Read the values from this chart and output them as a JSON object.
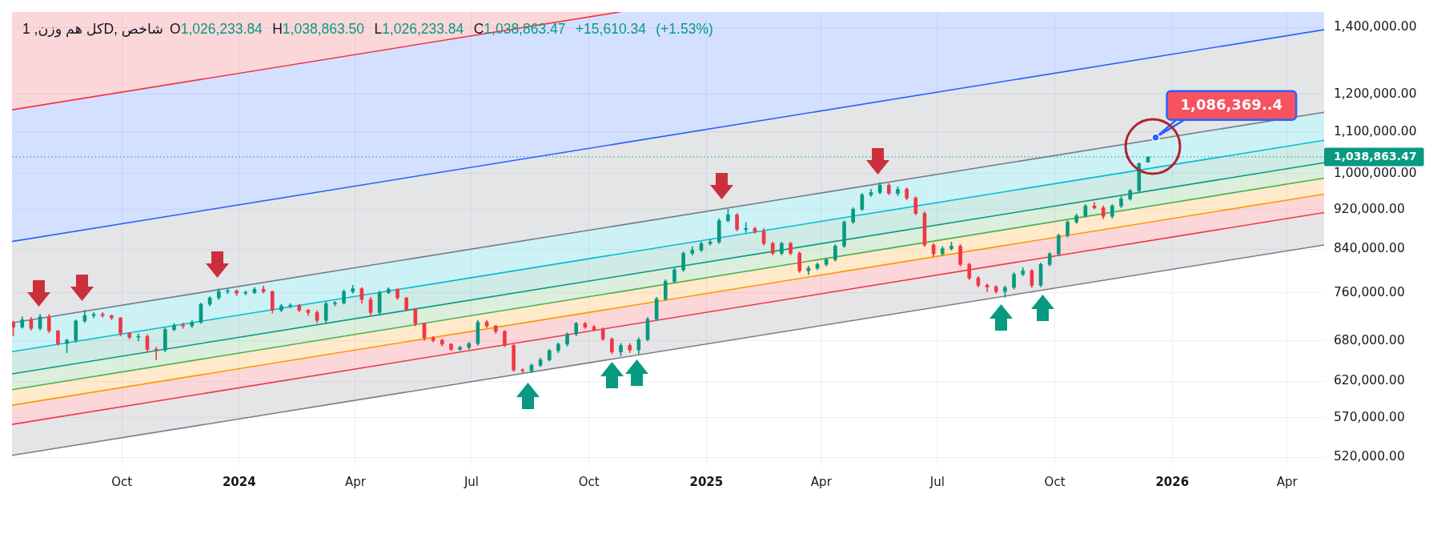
{
  "chart_data": {
    "type": "candlestick",
    "title": "کل هم وزن, 1D, شاخص",
    "subtitle": "O1,026,233.84 H1,038,863.50 L1,026,233.84 C1,038,863.47 +15,610.34 (+1.53%)",
    "x": [
      "2023-07-08",
      "2023-07-15",
      "2023-07-22",
      "2023-07-29",
      "2023-08-05",
      "2023-08-12",
      "2023-08-19",
      "2023-08-26",
      "2023-09-02",
      "2023-09-09",
      "2023-09-16",
      "2023-09-23",
      "2023-09-30",
      "2023-10-07",
      "2023-10-14",
      "2023-10-21",
      "2023-10-28",
      "2023-11-04",
      "2023-11-11",
      "2023-11-18",
      "2023-11-25",
      "2023-12-02",
      "2023-12-09",
      "2023-12-16",
      "2023-12-23",
      "2023-12-30",
      "2024-01-06",
      "2024-01-13",
      "2024-01-20",
      "2024-01-27",
      "2024-02-03",
      "2024-02-10",
      "2024-02-17",
      "2024-02-24",
      "2024-03-02",
      "2024-03-09",
      "2024-03-16",
      "2024-03-23",
      "2024-03-30",
      "2024-04-06",
      "2024-04-13",
      "2024-04-20",
      "2024-04-27",
      "2024-05-04",
      "2024-05-11",
      "2024-05-18",
      "2024-05-25",
      "2024-06-01",
      "2024-06-08",
      "2024-06-15",
      "2024-06-22",
      "2024-06-29",
      "2024-07-06",
      "2024-07-13",
      "2024-07-20",
      "2024-07-27",
      "2024-08-03",
      "2024-08-10",
      "2024-08-17",
      "2024-08-24",
      "2024-08-31",
      "2024-09-07",
      "2024-09-14",
      "2024-09-21",
      "2024-09-28",
      "2024-10-05",
      "2024-10-12",
      "2024-10-19",
      "2024-10-26",
      "2024-11-02",
      "2024-11-09",
      "2024-11-16",
      "2024-11-23",
      "2024-11-30",
      "2024-12-07",
      "2024-12-14",
      "2024-12-21",
      "2024-12-28",
      "2025-01-04",
      "2025-01-11",
      "2025-01-18",
      "2025-01-25",
      "2025-02-01",
      "2025-02-08",
      "2025-02-15",
      "2025-02-22",
      "2025-03-01",
      "2025-03-08",
      "2025-03-15",
      "2025-03-22",
      "2025-03-29",
      "2025-04-05",
      "2025-04-12",
      "2025-04-19",
      "2025-04-26",
      "2025-05-03",
      "2025-05-10",
      "2025-05-17",
      "2025-05-24",
      "2025-05-31",
      "2025-06-07",
      "2025-06-14",
      "2025-06-21",
      "2025-06-28",
      "2025-07-05",
      "2025-07-12",
      "2025-07-19",
      "2025-07-26",
      "2025-08-02",
      "2025-08-09",
      "2025-08-16",
      "2025-08-23",
      "2025-08-30",
      "2025-09-06",
      "2025-09-13",
      "2025-09-20",
      "2025-09-27",
      "2025-10-04",
      "2025-10-11",
      "2025-10-18",
      "2025-10-25",
      "2025-11-01",
      "2025-11-08",
      "2025-11-15",
      "2025-11-22",
      "2025-11-29",
      "2025-12-06",
      "2025-12-13"
    ],
    "ohlc": [
      [
        709000,
        712000,
        688000,
        702000
      ],
      [
        702000,
        719000,
        700000,
        714000
      ],
      [
        714000,
        718000,
        697000,
        700000
      ],
      [
        700000,
        723000,
        697000,
        719000
      ],
      [
        719000,
        723000,
        693000,
        696000
      ],
      [
        696000,
        697000,
        673000,
        676000
      ],
      [
        676000,
        683000,
        662000,
        681000
      ],
      [
        681000,
        714000,
        678000,
        712000
      ],
      [
        712000,
        730000,
        709000,
        721000
      ],
      [
        721000,
        726000,
        717000,
        723000
      ],
      [
        723000,
        726000,
        718000,
        721000
      ],
      [
        721000,
        722000,
        714000,
        717000
      ],
      [
        717000,
        718000,
        688000,
        692000
      ],
      [
        692000,
        693000,
        683000,
        686000
      ],
      [
        686000,
        691000,
        680000,
        687000
      ],
      [
        687000,
        690000,
        663000,
        667000
      ],
      [
        667000,
        670000,
        651000,
        666000
      ],
      [
        666000,
        701000,
        663000,
        698000
      ],
      [
        698000,
        708000,
        696000,
        705000
      ],
      [
        705000,
        709000,
        700000,
        704000
      ],
      [
        704000,
        713000,
        701000,
        710000
      ],
      [
        710000,
        742000,
        708000,
        740000
      ],
      [
        740000,
        753000,
        737000,
        751000
      ],
      [
        751000,
        767000,
        748000,
        762000
      ],
      [
        762000,
        767000,
        758000,
        763000
      ],
      [
        763000,
        765000,
        755000,
        759000
      ],
      [
        759000,
        763000,
        756000,
        760000
      ],
      [
        760000,
        769000,
        758000,
        766000
      ],
      [
        766000,
        772000,
        759000,
        762000
      ],
      [
        762000,
        763000,
        725000,
        730000
      ],
      [
        730000,
        740000,
        727000,
        737000
      ],
      [
        737000,
        741000,
        734000,
        738000
      ],
      [
        738000,
        740000,
        727000,
        730000
      ],
      [
        730000,
        731000,
        721000,
        726000
      ],
      [
        726000,
        729000,
        709000,
        713000
      ],
      [
        713000,
        744000,
        709000,
        741000
      ],
      [
        741000,
        745000,
        737000,
        742000
      ],
      [
        742000,
        765000,
        740000,
        762000
      ],
      [
        762000,
        773000,
        759000,
        767000
      ],
      [
        767000,
        769000,
        742000,
        748000
      ],
      [
        748000,
        752000,
        722000,
        726000
      ],
      [
        726000,
        763000,
        723000,
        760000
      ],
      [
        760000,
        769000,
        758000,
        766000
      ],
      [
        766000,
        767000,
        748000,
        751000
      ],
      [
        751000,
        752000,
        729000,
        731000
      ],
      [
        731000,
        733000,
        704000,
        708000
      ],
      [
        708000,
        709000,
        681000,
        685000
      ],
      [
        685000,
        687000,
        678000,
        681000
      ],
      [
        681000,
        683000,
        672000,
        675000
      ],
      [
        675000,
        676000,
        665000,
        667000
      ],
      [
        667000,
        672000,
        665000,
        670000
      ],
      [
        670000,
        678000,
        667000,
        676000
      ],
      [
        676000,
        713000,
        673000,
        710000
      ],
      [
        710000,
        713000,
        701000,
        704000
      ],
      [
        704000,
        705000,
        692000,
        695000
      ],
      [
        695000,
        697000,
        671000,
        673000
      ],
      [
        673000,
        675000,
        634000,
        636000
      ],
      [
        636000,
        638000,
        632000,
        635000
      ],
      [
        635000,
        645000,
        632000,
        643000
      ],
      [
        643000,
        654000,
        641000,
        651000
      ],
      [
        651000,
        667000,
        649000,
        665000
      ],
      [
        665000,
        677000,
        662000,
        675000
      ],
      [
        675000,
        693000,
        672000,
        691000
      ],
      [
        691000,
        710000,
        688000,
        708000
      ],
      [
        708000,
        710000,
        700000,
        702000
      ],
      [
        702000,
        705000,
        696000,
        698000
      ],
      [
        698000,
        701000,
        681000,
        683000
      ],
      [
        683000,
        685000,
        660000,
        663000
      ],
      [
        663000,
        676000,
        657000,
        673000
      ],
      [
        673000,
        676000,
        662000,
        666000
      ],
      [
        666000,
        685000,
        660000,
        682000
      ],
      [
        682000,
        718000,
        680000,
        715000
      ],
      [
        715000,
        752000,
        713000,
        749000
      ],
      [
        749000,
        783000,
        746000,
        780000
      ],
      [
        780000,
        805000,
        777000,
        801000
      ],
      [
        801000,
        835000,
        798000,
        832000
      ],
      [
        832000,
        845000,
        829000,
        838000
      ],
      [
        838000,
        854000,
        835000,
        851000
      ],
      [
        851000,
        859000,
        848000,
        854000
      ],
      [
        854000,
        901000,
        851000,
        897000
      ],
      [
        897000,
        921000,
        894000,
        909000
      ],
      [
        909000,
        912000,
        876000,
        879000
      ],
      [
        879000,
        893000,
        873000,
        881000
      ],
      [
        881000,
        884000,
        871000,
        875000
      ],
      [
        875000,
        881000,
        848000,
        851000
      ],
      [
        851000,
        854000,
        829000,
        832000
      ],
      [
        832000,
        854000,
        829000,
        851000
      ],
      [
        851000,
        854000,
        829000,
        832000
      ],
      [
        832000,
        835000,
        796000,
        799000
      ],
      [
        799000,
        808000,
        792000,
        804000
      ],
      [
        804000,
        814000,
        801000,
        811000
      ],
      [
        811000,
        823000,
        808000,
        820000
      ],
      [
        820000,
        849000,
        817000,
        846000
      ],
      [
        846000,
        897000,
        843000,
        894000
      ],
      [
        894000,
        924000,
        891000,
        921000
      ],
      [
        921000,
        955000,
        918000,
        952000
      ],
      [
        952000,
        964000,
        948000,
        957000
      ],
      [
        957000,
        979000,
        954000,
        973000
      ],
      [
        973000,
        977000,
        952000,
        955000
      ],
      [
        955000,
        970000,
        950000,
        964000
      ],
      [
        964000,
        968000,
        941000,
        945000
      ],
      [
        945000,
        948000,
        909000,
        912000
      ],
      [
        912000,
        916000,
        845000,
        848000
      ],
      [
        848000,
        851000,
        826000,
        831000
      ],
      [
        831000,
        845000,
        828000,
        841000
      ],
      [
        841000,
        854000,
        838000,
        846000
      ],
      [
        846000,
        849000,
        808000,
        811000
      ],
      [
        811000,
        814000,
        783000,
        786000
      ],
      [
        786000,
        789000,
        770000,
        773000
      ],
      [
        773000,
        776000,
        762000,
        770000
      ],
      [
        770000,
        773000,
        759000,
        762000
      ],
      [
        762000,
        772000,
        752000,
        769000
      ],
      [
        769000,
        796000,
        766000,
        793000
      ],
      [
        793000,
        805000,
        790000,
        799000
      ],
      [
        799000,
        802000,
        769000,
        773000
      ],
      [
        773000,
        814000,
        770000,
        811000
      ],
      [
        811000,
        834000,
        808000,
        831000
      ],
      [
        831000,
        870000,
        828000,
        867000
      ],
      [
        867000,
        897000,
        863000,
        894000
      ],
      [
        894000,
        911000,
        891000,
        907000
      ],
      [
        907000,
        931000,
        904000,
        928000
      ],
      [
        928000,
        936000,
        921000,
        924000
      ],
      [
        924000,
        928000,
        901000,
        906000
      ],
      [
        906000,
        931000,
        902000,
        928000
      ],
      [
        928000,
        948000,
        924000,
        943000
      ],
      [
        943000,
        964000,
        940000,
        961000
      ],
      [
        961000,
        1025000,
        957000,
        1023000
      ],
      [
        1026233.84,
        1038863.5,
        1026233.84,
        1038863.47
      ]
    ],
    "colors": [
      "#f23645",
      "#089981",
      "#f23645",
      "#089981",
      "#f23645",
      "#f23645",
      "#089981",
      "#089981",
      "#089981",
      "#089981",
      "#f23645",
      "#f23645",
      "#f23645",
      "#f23645",
      "#089981",
      "#f23645",
      "#f23645",
      "#089981",
      "#089981",
      "#f23645",
      "#089981",
      "#089981",
      "#089981",
      "#089981",
      "#089981",
      "#f23645",
      "#089981",
      "#089981",
      "#f23645",
      "#f23645",
      "#089981",
      "#089981",
      "#f23645",
      "#f23645",
      "#f23645",
      "#089981",
      "#089981",
      "#089981",
      "#089981",
      "#f23645",
      "#f23645",
      "#089981",
      "#089981",
      "#f23645",
      "#f23645",
      "#f23645",
      "#f23645",
      "#f23645",
      "#f23645",
      "#f23645",
      "#089981",
      "#089981",
      "#089981",
      "#f23645",
      "#f23645",
      "#f23645",
      "#f23645",
      "#f23645",
      "#089981",
      "#089981",
      "#089981",
      "#089981",
      "#089981",
      "#089981",
      "#f23645",
      "#f23645",
      "#f23645",
      "#f23645",
      "#089981",
      "#f23645",
      "#089981",
      "#089981",
      "#089981",
      "#089981",
      "#089981",
      "#089981",
      "#089981",
      "#089981",
      "#089981",
      "#089981",
      "#089981",
      "#f23645",
      "#089981",
      "#f23645",
      "#f23645",
      "#f23645",
      "#089981",
      "#f23645",
      "#f23645",
      "#089981",
      "#089981",
      "#089981",
      "#089981",
      "#089981",
      "#089981",
      "#089981",
      "#089981",
      "#089981",
      "#f23645",
      "#089981",
      "#f23645",
      "#f23645",
      "#f23645",
      "#f23645",
      "#089981",
      "#089981",
      "#f23645",
      "#f23645",
      "#f23645",
      "#f23645",
      "#f23645",
      "#089981",
      "#089981",
      "#089981",
      "#f23645",
      "#089981",
      "#089981",
      "#089981",
      "#089981",
      "#089981",
      "#089981",
      "#f23645",
      "#f23645",
      "#089981",
      "#089981",
      "#089981",
      "#089981",
      "#089981"
    ],
    "series": [
      {
        "type": "line",
        "color": "#f23645",
        "x": [
          "2023-07-07",
          "2024-10-25"
        ],
        "values": [
          1157700,
          1450000
        ],
        "lower": [
          1157700,
          1450000
        ],
        "upper": [
          1450000,
          1450000
        ]
      },
      {
        "type": "line",
        "color": "#2962ff",
        "x": [
          "2023-07-07",
          "2024-10-25",
          "2026-04-30"
        ],
        "values": [
          855000,
          1071500,
          1392000
        ],
        "lower": [
          855000,
          1071500,
          1392000
        ],
        "upper": [
          1157700,
          1450000,
          1450000
        ]
      },
      {
        "type": "line",
        "color": "#787b86",
        "x": [
          "2023-07-07",
          "2026-04-30"
        ],
        "values": [
          709000,
          1151100
        ],
        "lower": [
          709000,
          1151100
        ],
        "upper": [
          855000,
          1392000
        ]
      },
      {
        "type": "line",
        "color": "#00bcd4",
        "x": [
          "2023-07-07",
          "2026-04-30"
        ],
        "values": [
          663400,
          1079200
        ],
        "lower": [
          663400,
          1079200
        ],
        "upper": [
          709000,
          1151100
        ]
      },
      {
        "type": "line",
        "color": "#089981",
        "x": [
          "2023-07-07",
          "2026-04-30"
        ],
        "values": [
          630400,
          1024900
        ],
        "lower": [
          630400,
          1024900
        ],
        "upper": [
          663400,
          1079200
        ]
      },
      {
        "type": "line",
        "color": "#4caf50",
        "x": [
          "2023-07-07",
          "2026-04-30"
        ],
        "values": [
          607800,
          989300
        ],
        "lower": [
          607800,
          989300
        ],
        "upper": [
          630400,
          1024900
        ]
      },
      {
        "type": "line",
        "color": "#ff9800",
        "x": [
          "2023-07-07",
          "2026-04-30"
        ],
        "values": [
          586500,
          953500
        ],
        "lower": [
          586500,
          953500
        ],
        "upper": [
          607800,
          989300
        ]
      },
      {
        "type": "line",
        "color": "#f23645",
        "x": [
          "2023-07-07",
          "2026-04-30"
        ],
        "values": [
          561100,
          913900
        ],
        "lower": [
          561100,
          913900
        ],
        "upper": [
          586500,
          953500
        ]
      },
      {
        "type": "line",
        "color": "#7b7e88",
        "x": [
          "2023-07-07",
          "2026-04-30"
        ],
        "values": [
          522600,
          848200
        ],
        "lower": [
          522600,
          848200
        ],
        "upper": [
          561100,
          913900
        ]
      }
    ],
    "xlim": [
      "2023-07-07",
      "2026-04-30"
    ],
    "xticks": [
      {
        "value": "2023-10",
        "label": "Oct"
      },
      {
        "value": "2024-01",
        "label": "2024"
      },
      {
        "value": "2024-04",
        "label": "Apr"
      },
      {
        "value": "2024-07",
        "label": "Jul"
      },
      {
        "value": "2024-10",
        "label": "Oct"
      },
      {
        "value": "2025-01",
        "label": "2025"
      },
      {
        "value": "2025-04",
        "label": "Apr"
      },
      {
        "value": "2025-07",
        "label": "Jul"
      },
      {
        "value": "2025-10",
        "label": "Oct"
      },
      {
        "value": "2026-01",
        "label": "2026"
      },
      {
        "value": "2026-04",
        "label": "Apr"
      }
    ],
    "ylim": [
      510000,
      1450000
    ],
    "yticks": [
      {
        "value": 520000,
        "label": "520,000.00"
      },
      {
        "value": 570000,
        "label": "570,000.00"
      },
      {
        "value": 620000,
        "label": "620,000.00"
      },
      {
        "value": 680000,
        "label": "680,000.00"
      },
      {
        "value": 760000,
        "label": "760,000.00"
      },
      {
        "value": 840000,
        "label": "840,000.00"
      },
      {
        "value": 920000,
        "label": "920,000.00"
      },
      {
        "value": 1000000,
        "label": "1,000,000.00"
      },
      {
        "value": 1100000,
        "label": "1,100,000.00"
      },
      {
        "value": 1200000,
        "label": "1,200,000.00"
      },
      {
        "value": 1400000,
        "label": "1,400,000.00"
      }
    ],
    "log": true,
    "grid": true,
    "ref_lines": [
      {
        "axis": "y",
        "value": 1038863.47,
        "label": "1,038,863.47",
        "color": "#089981",
        "line_style": "dotted"
      }
    ],
    "annotations": [
      {
        "text": "1,086,369..4",
        "x": "2025-12-19",
        "y": 1086369.4
      }
    ]
  }
}
